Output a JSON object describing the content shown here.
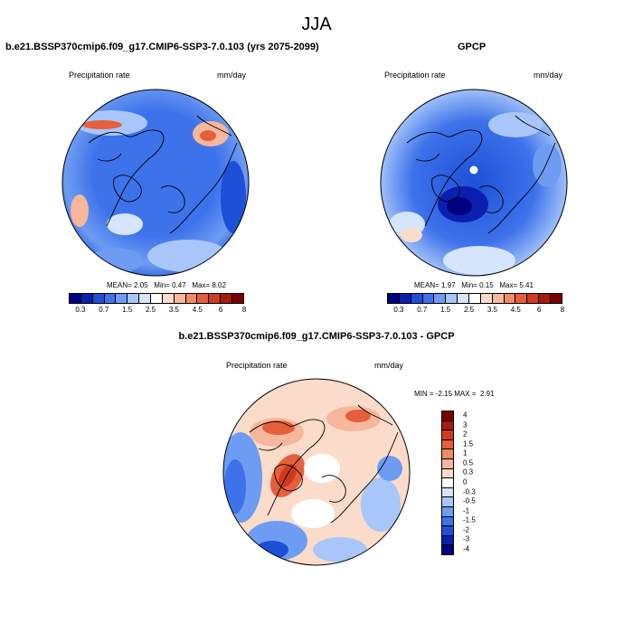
{
  "page_title": "JJA",
  "colors": {
    "precip_scale": [
      "#000080",
      "#0a1fb0",
      "#1e4fd8",
      "#3d72ea",
      "#6e9cf3",
      "#a8c6fa",
      "#d6e5fc",
      "#ffffff",
      "#fbdcca",
      "#f6b79d",
      "#ef8b67",
      "#e55f3c",
      "#cf3b1f",
      "#a51b0c",
      "#7a0000"
    ],
    "diff_scale": [
      "#000080",
      "#0a1fb0",
      "#1e4fd8",
      "#3d72ea",
      "#6e9cf3",
      "#a8c6fa",
      "#d6e5fc",
      "#ffffff",
      "#fbdcca",
      "#f6b79d",
      "#ef8b67",
      "#e55f3c",
      "#cf3b1f",
      "#a51b0c",
      "#7a0000"
    ]
  },
  "panels": {
    "model": {
      "title": "b.e21.BSSP370cmip6.f09_g17.CMIP6-SSP3-7.0.103 (yrs 2075-2099)",
      "variable": "Precipitation rate",
      "units": "mm/day",
      "stats": {
        "mean_label": "MEAN=",
        "mean": "2.05",
        "min_label": "Min=",
        "min": "0.47",
        "max_label": "Max=",
        "max": "8.02"
      },
      "ticks": [
        "0.3",
        "0.7",
        "1.5",
        "2.5",
        "3.5",
        "4.5",
        "6",
        "8"
      ]
    },
    "obs": {
      "title": "GPCP",
      "variable": "Precipitation rate",
      "units": "mm/day",
      "stats": {
        "mean_label": "MEAN=",
        "mean": "1.97",
        "min_label": "Min=",
        "min": "0.15",
        "max_label": "Max=",
        "max": "5.41"
      },
      "ticks": [
        "0.3",
        "0.7",
        "1.5",
        "2.5",
        "3.5",
        "4.5",
        "6",
        "8"
      ]
    },
    "diff": {
      "title": "b.e21.BSSP370cmip6.f09_g17.CMIP6-SSP3-7.0.103 - GPCP",
      "variable": "Precipitation rate",
      "units": "mm/day",
      "stats": {
        "min_label": "MIN =",
        "min": "-2.15",
        "max_label": "MAX =",
        "max": "2.91"
      },
      "ticks": [
        "4",
        "3",
        "2",
        "1.5",
        "1",
        "0.5",
        "0.3",
        "0",
        "-0.3",
        "-0.5",
        "-1",
        "-1.5",
        "-2",
        "-3",
        "-4"
      ]
    }
  }
}
